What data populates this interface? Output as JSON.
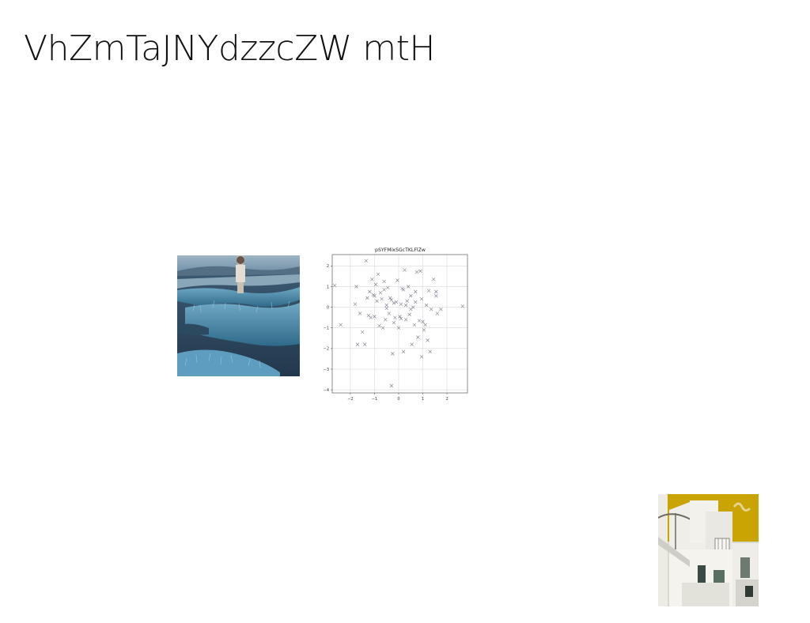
{
  "slide": {
    "title": "VhZmTaJNYdzzcZW mtH"
  },
  "images": {
    "marsh": {
      "description_icon": "photo-icon"
    },
    "buildings": {
      "description_icon": "photo-icon"
    }
  },
  "colors": {
    "marsh_water": "#2e4a63",
    "marsh_grass": "#5a93b0",
    "building_sky": "#c9a402",
    "scatter_marker": "#7d7d8c"
  },
  "chart_data": {
    "type": "scatter",
    "title": "pSYFMixSGcTKLFlZw",
    "xlabel": "",
    "ylabel": "",
    "xlim": [
      -2.75,
      2.85
    ],
    "ylim": [
      -4.15,
      2.55
    ],
    "xticks": [
      -2,
      -1,
      0,
      1,
      2
    ],
    "xtick_labels": [
      "−2",
      "−1",
      "0",
      "1",
      "2"
    ],
    "yticks": [
      2,
      1,
      0,
      -1,
      -2,
      -3,
      -4
    ],
    "ytick_labels": [
      "2",
      "1",
      "0",
      "−1",
      "−2",
      "−3",
      "−4"
    ],
    "grid": true,
    "marker": "x",
    "series": [
      {
        "points": [
          [
            -2.65,
            1.05
          ],
          [
            -2.4,
            -0.85
          ],
          [
            -1.8,
            0.15
          ],
          [
            -1.75,
            1.0
          ],
          [
            -1.6,
            -0.3
          ],
          [
            -1.5,
            -1.2
          ],
          [
            -1.35,
            2.25
          ],
          [
            -1.3,
            0.45
          ],
          [
            -1.25,
            -0.4
          ],
          [
            -1.2,
            0.75
          ],
          [
            -1.15,
            -0.5
          ],
          [
            -1.1,
            1.35
          ],
          [
            -1.05,
            0.6
          ],
          [
            -1.0,
            -0.45
          ],
          [
            -0.95,
            1.1
          ],
          [
            -0.9,
            0.3
          ],
          [
            -0.85,
            1.6
          ],
          [
            -0.8,
            -0.9
          ],
          [
            -0.75,
            0.7
          ],
          [
            -0.7,
            0.4
          ],
          [
            -0.65,
            -1.0
          ],
          [
            -0.6,
            1.25
          ],
          [
            -0.55,
            -0.6
          ],
          [
            -0.5,
            0.1
          ],
          [
            -0.45,
            0.95
          ],
          [
            -0.4,
            -0.3
          ],
          [
            -0.35,
            0.45
          ],
          [
            -0.3,
            -3.8
          ],
          [
            -0.25,
            -2.25
          ],
          [
            -0.2,
            0.2
          ],
          [
            -0.15,
            -0.5
          ],
          [
            -0.1,
            0.25
          ],
          [
            -0.05,
            1.3
          ],
          [
            0.0,
            -1.0
          ],
          [
            0.05,
            -0.45
          ],
          [
            0.1,
            0.15
          ],
          [
            0.15,
            0.9
          ],
          [
            0.2,
            -2.15
          ],
          [
            0.25,
            1.8
          ],
          [
            0.3,
            -0.6
          ],
          [
            0.35,
            0.3
          ],
          [
            0.4,
            1.0
          ],
          [
            0.45,
            -0.35
          ],
          [
            0.5,
            0.55
          ],
          [
            0.55,
            -1.8
          ],
          [
            0.6,
            0.0
          ],
          [
            0.65,
            -0.85
          ],
          [
            0.7,
            0.75
          ],
          [
            0.75,
            1.7
          ],
          [
            0.8,
            -1.45
          ],
          [
            0.85,
            -0.65
          ],
          [
            0.9,
            1.75
          ],
          [
            0.95,
            0.4
          ],
          [
            1.0,
            -0.7
          ],
          [
            1.05,
            -1.1
          ],
          [
            1.1,
            -0.85
          ],
          [
            1.15,
            0.1
          ],
          [
            1.2,
            -1.6
          ],
          [
            1.25,
            0.8
          ],
          [
            1.3,
            -2.15
          ],
          [
            1.35,
            -0.1
          ],
          [
            1.45,
            1.35
          ],
          [
            1.55,
            0.55
          ],
          [
            1.6,
            -0.3
          ],
          [
            1.75,
            -0.1
          ],
          [
            2.65,
            0.05
          ],
          [
            -1.4,
            -1.8
          ],
          [
            -1.7,
            -1.8
          ],
          [
            -0.5,
            -0.05
          ],
          [
            0.95,
            -2.4
          ],
          [
            0.1,
            -0.55
          ],
          [
            0.5,
            -0.1
          ],
          [
            -0.2,
            -0.75
          ],
          [
            0.3,
            0.1
          ],
          [
            -1.0,
            0.55
          ],
          [
            1.55,
            0.75
          ],
          [
            0.7,
            0.25
          ],
          [
            -0.3,
            0.35
          ],
          [
            -0.6,
            0.85
          ],
          [
            0.2,
            0.85
          ]
        ]
      }
    ]
  }
}
